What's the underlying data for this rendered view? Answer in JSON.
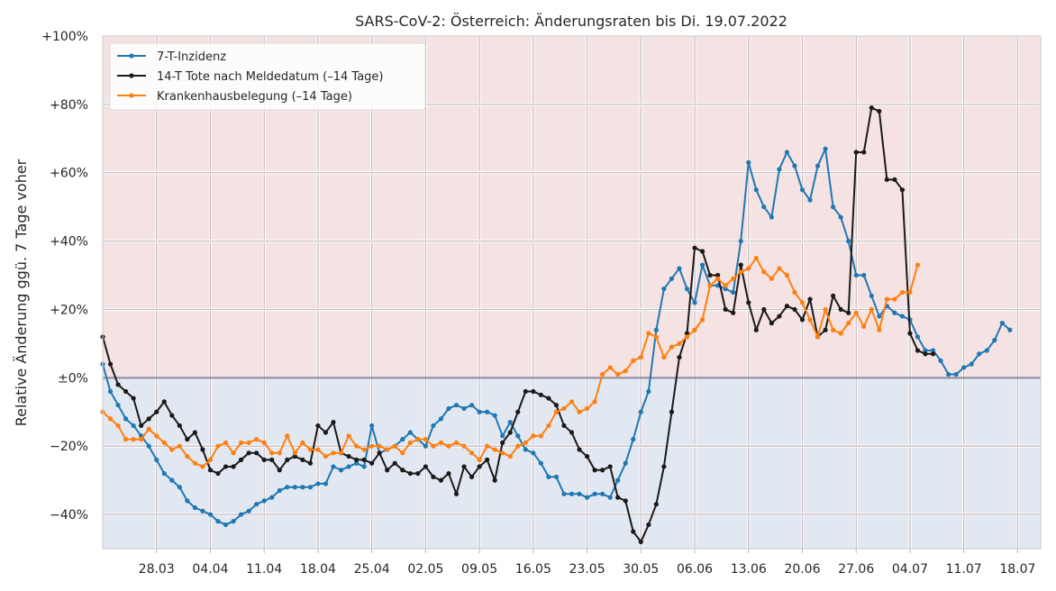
{
  "chart_data": {
    "type": "line",
    "title": "SARS-CoV-2: Österreich: Änderungsraten bis Di. 19.07.2022",
    "ylabel": "Relative Änderung ggü. 7 Tage voher",
    "xlabel": "",
    "ylim": [
      -50,
      100
    ],
    "x_start": "2022-03-21",
    "x_end": "2022-07-21",
    "x_tick_labels": [
      "28.03",
      "04.04",
      "11.04",
      "18.04",
      "25.04",
      "02.05",
      "09.05",
      "16.05",
      "23.05",
      "30.05",
      "06.06",
      "13.06",
      "20.06",
      "27.06",
      "04.07",
      "11.07",
      "18.07"
    ],
    "y_tick_labels": [
      "−40%",
      "−20%",
      "±0%",
      "+20%",
      "+40%",
      "+60%",
      "+80%",
      "+100%"
    ],
    "y_ticks": [
      -40,
      -20,
      0,
      20,
      40,
      60,
      80,
      100
    ],
    "legend_position": "top-left",
    "grid": true,
    "background_bands": {
      "positive": "#f5e3e3",
      "negative": "#e2e8f1"
    },
    "zero_line_color": "#8a8aa0",
    "series": [
      {
        "name": "7-T-Inzidenz",
        "color": "#1f77b4",
        "x_start": "2022-03-21",
        "values": [
          4,
          -4,
          -8,
          -12,
          -14,
          -17,
          -20,
          -24,
          -28,
          -30,
          -32,
          -36,
          -38,
          -39,
          -40,
          -42,
          -43,
          -42,
          -40,
          -39,
          -37,
          -36,
          -35,
          -33,
          -32,
          -32,
          -32,
          -32,
          -31,
          -31,
          -26,
          -27,
          -26,
          -25,
          -26,
          -14,
          -22,
          -21,
          -20,
          -18,
          -16,
          -18,
          -20,
          -14,
          -12,
          -9,
          -8,
          -9,
          -8,
          -10,
          -10,
          -11,
          -17,
          -13,
          -17,
          -21,
          -22,
          -25,
          -29,
          -29,
          -34,
          -34,
          -34,
          -35,
          -34,
          -34,
          -35,
          -30,
          -25,
          -18,
          -10,
          -4,
          14,
          26,
          29,
          32,
          26,
          22,
          33,
          27,
          27,
          26,
          25,
          40,
          63,
          55,
          50,
          47,
          61,
          66,
          62,
          55,
          52,
          62,
          67,
          50,
          47,
          40,
          30,
          30,
          24,
          18,
          21,
          19,
          18,
          17,
          12,
          8,
          8,
          5,
          1,
          1,
          3,
          4,
          7,
          8,
          11,
          16,
          14
        ]
      },
      {
        "name": "14-T Tote nach Meldedatum (–14 Tage)",
        "color": "#1a1a1a",
        "x_start": "2022-03-21",
        "values": [
          12,
          4,
          -2,
          -4,
          -6,
          -14,
          -12,
          -10,
          -7,
          -11,
          -14,
          -18,
          -16,
          -21,
          -27,
          -28,
          -26,
          -26,
          -24,
          -22,
          -22,
          -24,
          -24,
          -27,
          -24,
          -23,
          -24,
          -25,
          -14,
          -16,
          -13,
          -22,
          -23,
          -24,
          -24,
          -25,
          -22,
          -27,
          -25,
          -27,
          -28,
          -28,
          -26,
          -29,
          -30,
          -28,
          -34,
          -26,
          -29,
          -26,
          -24,
          -30,
          -19,
          -16,
          -10,
          -4,
          -4,
          -5,
          -6,
          -8,
          -14,
          -16,
          -21,
          -23,
          -27,
          -27,
          -26,
          -35,
          -36,
          -45,
          -48,
          -43,
          -37,
          -26,
          -10,
          6,
          13,
          38,
          37,
          30,
          30,
          20,
          19,
          33,
          22,
          14,
          20,
          16,
          18,
          21,
          20,
          17,
          23,
          12,
          14,
          24,
          20,
          19,
          66,
          66,
          79,
          78,
          58,
          58,
          55,
          13,
          8,
          7,
          7
        ]
      },
      {
        "name": "Krankenhausbelegung (–14 Tage)",
        "color": "#ff7f0e",
        "x_start": "2022-03-21",
        "values": [
          -10,
          -12,
          -14,
          -18,
          -18,
          -18,
          -15,
          -17,
          -19,
          -21,
          -20,
          -23,
          -25,
          -26,
          -24,
          -20,
          -19,
          -22,
          -19,
          -19,
          -18,
          -19,
          -22,
          -22,
          -17,
          -22,
          -19,
          -21,
          -21,
          -23,
          -22,
          -22,
          -17,
          -20,
          -21,
          -20,
          -20,
          -21,
          -20,
          -22,
          -19,
          -18,
          -18,
          -20,
          -19,
          -20,
          -19,
          -20,
          -22,
          -24,
          -20,
          -21,
          -22,
          -23,
          -20,
          -19,
          -17,
          -17,
          -14,
          -10,
          -9,
          -7,
          -10,
          -9,
          -7,
          1,
          3,
          1,
          2,
          5,
          6,
          13,
          12,
          6,
          9,
          10,
          12,
          14,
          17,
          27,
          29,
          27,
          29,
          31,
          32,
          35,
          31,
          29,
          32,
          30,
          25,
          22,
          17,
          12,
          20,
          14,
          13,
          16,
          19,
          15,
          20,
          14,
          23,
          23,
          25,
          25,
          33
        ]
      }
    ]
  }
}
